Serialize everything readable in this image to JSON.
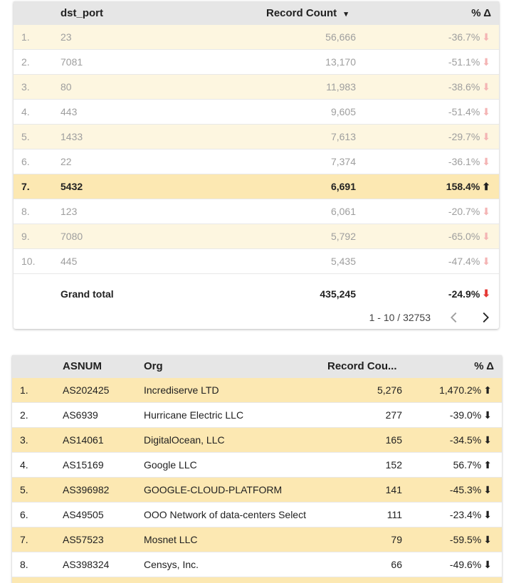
{
  "table1": {
    "headers": {
      "dst_port": "dst_port",
      "record_count": "Record Count",
      "sort_icon": "▾",
      "pct": "% Δ"
    },
    "rows": [
      {
        "idx": "1.",
        "port": "23",
        "count": "56,666",
        "pct": "-36.7%",
        "trend": "down"
      },
      {
        "idx": "2.",
        "port": "7081",
        "count": "13,170",
        "pct": "-51.1%",
        "trend": "down"
      },
      {
        "idx": "3.",
        "port": "80",
        "count": "11,983",
        "pct": "-38.6%",
        "trend": "down"
      },
      {
        "idx": "4.",
        "port": "443",
        "count": "9,605",
        "pct": "-51.4%",
        "trend": "down"
      },
      {
        "idx": "5.",
        "port": "1433",
        "count": "7,613",
        "pct": "-29.7%",
        "trend": "down"
      },
      {
        "idx": "6.",
        "port": "22",
        "count": "7,374",
        "pct": "-36.1%",
        "trend": "down"
      },
      {
        "idx": "7.",
        "port": "5432",
        "count": "6,691",
        "pct": "158.4%",
        "trend": "up"
      },
      {
        "idx": "8.",
        "port": "123",
        "count": "6,061",
        "pct": "-20.7%",
        "trend": "down"
      },
      {
        "idx": "9.",
        "port": "7080",
        "count": "5,792",
        "pct": "-65.0%",
        "trend": "down"
      },
      {
        "idx": "10.",
        "port": "445",
        "count": "5,435",
        "pct": "-47.4%",
        "trend": "down"
      }
    ],
    "total": {
      "label": "Grand total",
      "count": "435,245",
      "pct": "-24.9%",
      "trend": "down"
    },
    "pager": {
      "text": "1 - 10 / 32753"
    }
  },
  "table2": {
    "headers": {
      "asnum": "ASNUM",
      "org": "Org",
      "record_count": "Record Cou...",
      "pct": "% Δ"
    },
    "rows": [
      {
        "idx": "1.",
        "asnum": "AS202425",
        "org": "Incrediserve LTD",
        "count": "5,276",
        "pct": "1,470.2%",
        "trend": "up"
      },
      {
        "idx": "2.",
        "asnum": "AS6939",
        "org": "Hurricane Electric LLC",
        "count": "277",
        "pct": "-39.0%",
        "trend": "down"
      },
      {
        "idx": "3.",
        "asnum": "AS14061",
        "org": "DigitalOcean, LLC",
        "count": "165",
        "pct": "-34.5%",
        "trend": "down"
      },
      {
        "idx": "4.",
        "asnum": "AS15169",
        "org": "Google LLC",
        "count": "152",
        "pct": "56.7%",
        "trend": "up"
      },
      {
        "idx": "5.",
        "asnum": "AS396982",
        "org": "GOOGLE-CLOUD-PLATFORM",
        "count": "141",
        "pct": "-45.3%",
        "trend": "down"
      },
      {
        "idx": "6.",
        "asnum": "AS49505",
        "org": "OOO Network of data-centers Select",
        "count": "111",
        "pct": "-23.4%",
        "trend": "down"
      },
      {
        "idx": "7.",
        "asnum": "AS57523",
        "org": "Mosnet LLC",
        "count": "79",
        "pct": "-59.5%",
        "trend": "down"
      },
      {
        "idx": "8.",
        "asnum": "AS398324",
        "org": "Censys, Inc.",
        "count": "66",
        "pct": "-49.6%",
        "trend": "down"
      },
      {
        "idx": "",
        "asnum": "",
        "org": "",
        "count": "",
        "pct": "",
        "trend": ""
      }
    ]
  },
  "icons": {
    "down": "down-arrow-icon",
    "up": "up-arrow-icon",
    "prev": "chevron-left-icon",
    "next": "chevron-right-icon"
  },
  "colors": {
    "header_bg": "#e6e6e6",
    "highlight": "#fce8b2",
    "band": "#fdf6e0",
    "up": "#43a047",
    "down": "#e53935"
  }
}
